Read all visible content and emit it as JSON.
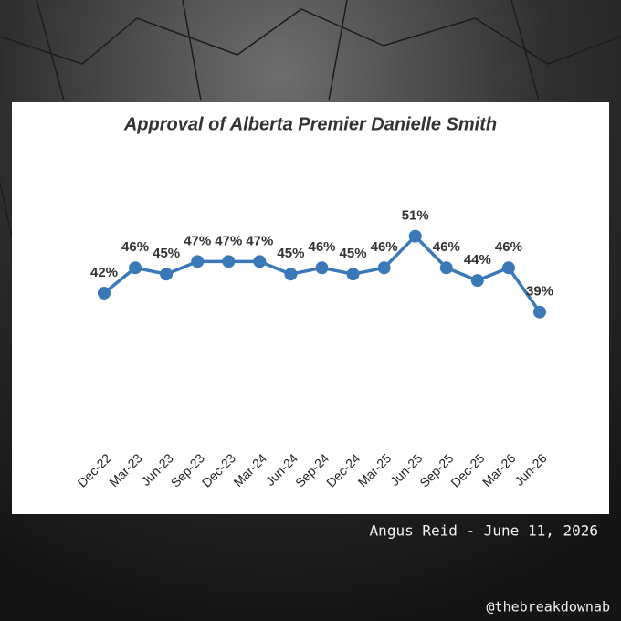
{
  "chart_data": {
    "type": "line",
    "title": "Approval of Alberta Premier Danielle Smith",
    "categories": [
      "Dec-22",
      "Mar-23",
      "Jun-23",
      "Sep-23",
      "Dec-23",
      "Mar-24",
      "Jun-24",
      "Sep-24",
      "Dec-24",
      "Mar-25",
      "Jun-25",
      "Sep-25",
      "Dec-25",
      "Mar-26",
      "Jun-26"
    ],
    "series": [
      {
        "color": "#3a78b8",
        "values": [
          42,
          46,
          45,
          47,
          47,
          47,
          45,
          46,
          45,
          46,
          51,
          46,
          44,
          46,
          39
        ],
        "value_labels": [
          "42%",
          "46%",
          "45%",
          "47%",
          "47%",
          "47%",
          "45%",
          "46%",
          "45%",
          "46%",
          "51%",
          "46%",
          "44%",
          "46%",
          "39%"
        ]
      }
    ],
    "ylim": [
      30,
      55
    ],
    "source": "Angus Reid - June 11, 2026",
    "handle": "@thebreakdownab"
  }
}
